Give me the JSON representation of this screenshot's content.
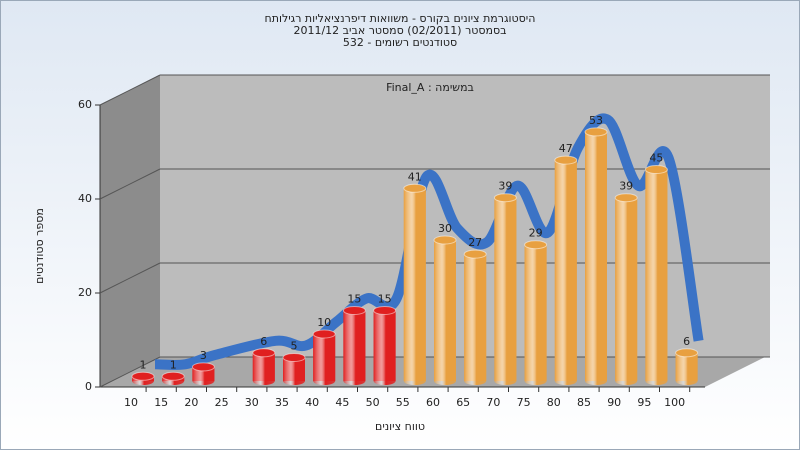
{
  "chart_data": {
    "type": "bar3d",
    "title": "היסטוגרמת ציונים בקורס - משוואות דיפרנציאליות רגילותח",
    "subtitle": [
      "בסמסטר (02/2011) סמסטר אביב 2011/12",
      "סטודנטים רשומים - 532"
    ],
    "annotation": "במשימה : Final_A",
    "x_label": "טווח ציונים",
    "y_label": "מספר סטודנטים",
    "categories": [
      "10",
      "15",
      "20",
      "25",
      "30",
      "35",
      "40",
      "45",
      "50",
      "55",
      "60",
      "65",
      "70",
      "75",
      "80",
      "85",
      "90",
      "95",
      "100"
    ],
    "values": [
      1,
      1,
      3,
      null,
      6,
      5,
      10,
      15,
      15,
      41,
      30,
      27,
      39,
      29,
      47,
      53,
      39,
      45,
      6
    ],
    "colors": [
      "#e02020",
      "#e02020",
      "#e02020",
      null,
      "#e02020",
      "#e02020",
      "#e02020",
      "#e02020",
      "#e02020",
      "#e8a040",
      "#e8a040",
      "#e8a040",
      "#e8a040",
      "#e8a040",
      "#e8a040",
      "#e8a040",
      "#e8a040",
      "#e8a040",
      "#e8a040"
    ],
    "line_color": "#3b73c6",
    "ylim": [
      0,
      60
    ],
    "yticks": [
      0,
      20,
      40,
      60
    ],
    "grid": true
  }
}
